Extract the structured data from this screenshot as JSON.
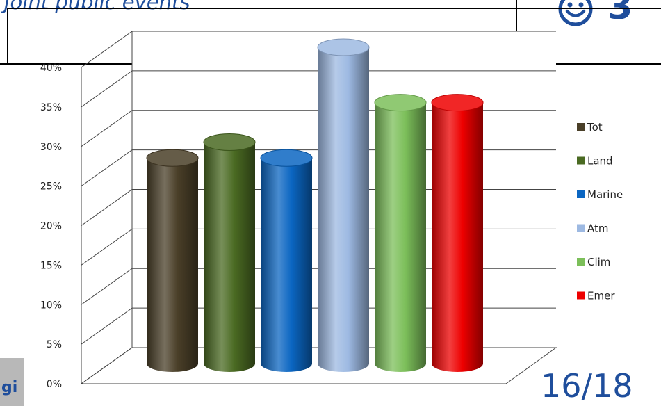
{
  "slide": {
    "heading": "Joint public events",
    "score_icon": "smiley-icon",
    "score_value": "3",
    "page_number": "16/18",
    "side_tab_text": "gi"
  },
  "chart_data": {
    "type": "bar",
    "style": "3d-cylinder",
    "categories": [
      "Tot",
      "Land",
      "Marine",
      "Atm",
      "Clim",
      "Emer"
    ],
    "values": [
      26,
      28,
      26,
      40,
      33,
      33
    ],
    "colors": [
      "#4a3f28",
      "#4a6a22",
      "#0b66c2",
      "#9db9e2",
      "#7cbf5a",
      "#ee0000"
    ],
    "ylim": [
      0,
      40
    ],
    "yticks": [
      0,
      5,
      10,
      15,
      20,
      25,
      30,
      35,
      40
    ],
    "ytick_labels": [
      "0%",
      "5%",
      "10%",
      "15%",
      "20%",
      "25%",
      "30%",
      "35%",
      "40%"
    ],
    "grid": true,
    "legend": {
      "position": "right",
      "entries": [
        "Tot",
        "Land",
        "Marine",
        "Atm",
        "Clim",
        "Emer"
      ]
    }
  }
}
